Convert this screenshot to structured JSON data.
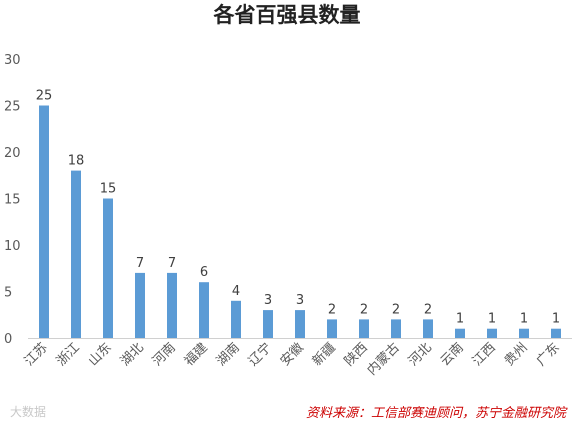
{
  "chart_data": {
    "type": "bar",
    "title": "各省百强县数量",
    "categories": [
      "江苏",
      "浙江",
      "山东",
      "湖北",
      "河南",
      "福建",
      "湖南",
      "辽宁",
      "安徽",
      "新疆",
      "陕西",
      "内蒙古",
      "河北",
      "云南",
      "江西",
      "贵州",
      "广东"
    ],
    "values": [
      25,
      18,
      15,
      7,
      7,
      6,
      4,
      3,
      3,
      2,
      2,
      2,
      2,
      1,
      1,
      1,
      1
    ],
    "ylim": [
      0,
      30
    ],
    "yticks": [
      0,
      5,
      10,
      15,
      20,
      25,
      30
    ],
    "grid": false,
    "data_labels": true,
    "bar_color": "#5b9bd5",
    "source": "资料来源：工信部赛迪顾问，苏宁金融研究院",
    "source_color": "#cc0000",
    "watermark": "大数据"
  }
}
